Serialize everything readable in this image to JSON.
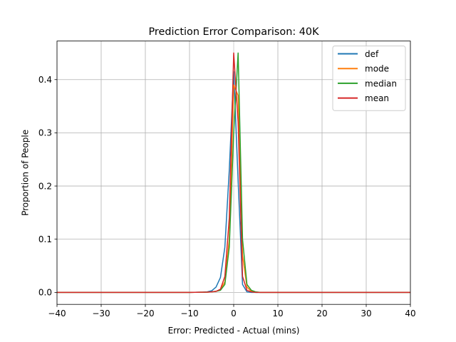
{
  "chart_data": {
    "type": "line",
    "title": "Prediction Error Comparison: 40K",
    "xlabel": "Error: Predicted - Actual (mins)",
    "ylabel": "Proportion of People",
    "xlim": [
      -40,
      40
    ],
    "ylim": [
      -0.0225,
      0.4725
    ],
    "xticks": [
      -40,
      -30,
      -20,
      -10,
      0,
      10,
      20,
      30,
      40
    ],
    "xtick_labels": [
      "−40",
      "−30",
      "−20",
      "−10",
      "0",
      "10",
      "20",
      "30",
      "40"
    ],
    "yticks": [
      0.0,
      0.1,
      0.2,
      0.3,
      0.4
    ],
    "ytick_labels": [
      "0.0",
      "0.1",
      "0.2",
      "0.3",
      "0.4"
    ],
    "grid": true,
    "legend_position": "top-right",
    "series": [
      {
        "name": "def",
        "color": "#1f77b4",
        "points": [
          [
            -40,
            0
          ],
          [
            -10,
            0
          ],
          [
            -7,
            0.0005
          ],
          [
            -6,
            0.001
          ],
          [
            -5,
            0.003
          ],
          [
            -4,
            0.01
          ],
          [
            -3,
            0.028
          ],
          [
            -2,
            0.085
          ],
          [
            -1,
            0.23
          ],
          [
            0,
            0.415
          ],
          [
            1,
            0.21
          ],
          [
            2,
            0.015
          ],
          [
            3,
            0.001
          ],
          [
            4,
            0
          ],
          [
            40,
            0
          ]
        ]
      },
      {
        "name": "mode",
        "color": "#ff7f0e",
        "points": [
          [
            -40,
            0
          ],
          [
            -10,
            0
          ],
          [
            -6,
            0.0005
          ],
          [
            -5,
            0.001
          ],
          [
            -4,
            0.002
          ],
          [
            -3,
            0.005
          ],
          [
            -2,
            0.02
          ],
          [
            -1,
            0.1
          ],
          [
            0,
            0.39
          ],
          [
            1,
            0.37
          ],
          [
            2,
            0.07
          ],
          [
            3,
            0.01
          ],
          [
            4,
            0.002
          ],
          [
            5,
            0.0005
          ],
          [
            6,
            0
          ],
          [
            40,
            0
          ]
        ]
      },
      {
        "name": "median",
        "color": "#2ca02c",
        "points": [
          [
            -40,
            0
          ],
          [
            -10,
            0
          ],
          [
            -6,
            0.0005
          ],
          [
            -5,
            0.001
          ],
          [
            -4,
            0.002
          ],
          [
            -3,
            0.004
          ],
          [
            -2,
            0.015
          ],
          [
            -1,
            0.085
          ],
          [
            0,
            0.3
          ],
          [
            1,
            0.45
          ],
          [
            2,
            0.1
          ],
          [
            3,
            0.015
          ],
          [
            4,
            0.004
          ],
          [
            5,
            0.001
          ],
          [
            6,
            0
          ],
          [
            40,
            0
          ]
        ]
      },
      {
        "name": "mean",
        "color": "#d62728",
        "points": [
          [
            -40,
            0
          ],
          [
            -10,
            0
          ],
          [
            -6,
            0.0005
          ],
          [
            -5,
            0.001
          ],
          [
            -4,
            0.002
          ],
          [
            -3,
            0.006
          ],
          [
            -2,
            0.03
          ],
          [
            -1,
            0.14
          ],
          [
            0,
            0.45
          ],
          [
            1,
            0.32
          ],
          [
            2,
            0.03
          ],
          [
            3,
            0.004
          ],
          [
            4,
            0.001
          ],
          [
            5,
            0
          ],
          [
            40,
            0
          ]
        ]
      }
    ]
  }
}
